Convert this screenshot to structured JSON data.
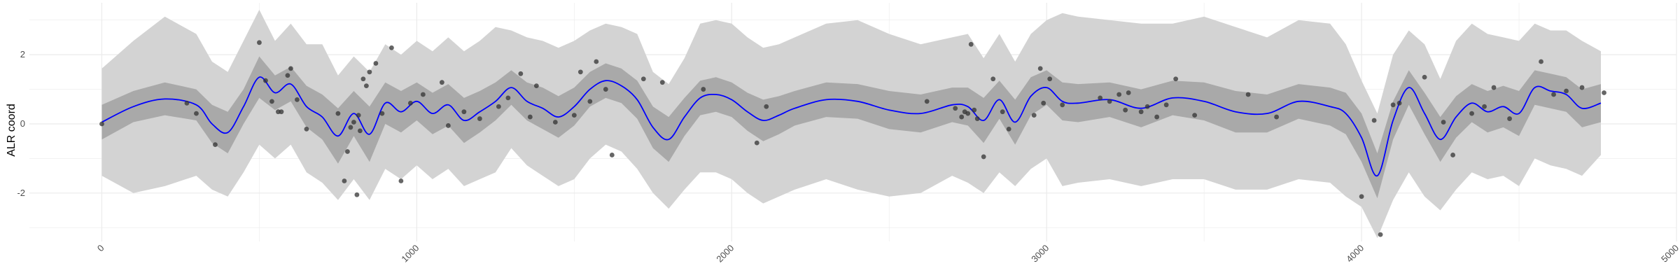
{
  "chart_data": {
    "type": "line",
    "title": "",
    "xlabel": "",
    "ylabel": "ALR coord",
    "xlim": [
      -230,
      5000
    ],
    "ylim": [
      -3.4,
      3.5
    ],
    "grid": true,
    "x_ticks": [
      0,
      1000,
      2000,
      3000,
      4000,
      5000
    ],
    "y_ticks": [
      -2,
      0,
      2
    ],
    "colors": {
      "mean_line": "#0000ff",
      "inner_band": "#a9a9a9",
      "outer_band": "#d3d3d3",
      "points": "#333333",
      "grid": "#ebebeb"
    },
    "series": [
      {
        "role": "mean",
        "x": [
          0,
          100,
          200,
          300,
          350,
          400,
          450,
          500,
          550,
          600,
          650,
          700,
          750,
          800,
          850,
          900,
          950,
          1000,
          1050,
          1100,
          1150,
          1200,
          1250,
          1300,
          1350,
          1400,
          1450,
          1500,
          1550,
          1600,
          1650,
          1700,
          1750,
          1800,
          1850,
          1900,
          1950,
          2000,
          2050,
          2100,
          2150,
          2200,
          2300,
          2400,
          2500,
          2600,
          2700,
          2750,
          2800,
          2850,
          2900,
          2950,
          3000,
          3050,
          3100,
          3200,
          3300,
          3400,
          3500,
          3600,
          3700,
          3800,
          3900,
          3950,
          4000,
          4050,
          4100,
          4150,
          4200,
          4250,
          4300,
          4350,
          4400,
          4450,
          4500,
          4550,
          4600,
          4650,
          4700,
          4760
        ],
        "y": [
          0.05,
          0.5,
          0.72,
          0.55,
          0.0,
          -0.25,
          0.5,
          1.35,
          0.9,
          1.15,
          0.5,
          0.2,
          -0.35,
          0.3,
          -0.3,
          0.6,
          0.35,
          0.65,
          0.3,
          0.55,
          0.1,
          0.35,
          0.65,
          1.05,
          0.65,
          0.45,
          0.2,
          0.5,
          1.0,
          1.25,
          1.1,
          0.7,
          -0.1,
          -0.45,
          0.2,
          0.75,
          0.85,
          0.7,
          0.35,
          0.1,
          0.25,
          0.45,
          0.7,
          0.65,
          0.4,
          0.3,
          0.55,
          0.5,
          0.1,
          0.7,
          0.05,
          0.8,
          1.05,
          0.65,
          0.6,
          0.7,
          0.45,
          0.75,
          0.65,
          0.35,
          0.3,
          0.65,
          0.5,
          0.3,
          -0.4,
          -1.5,
          0.1,
          1.05,
          0.3,
          -0.45,
          0.2,
          0.6,
          0.35,
          0.5,
          0.3,
          1.05,
          0.95,
          0.85,
          0.45,
          0.6
        ]
      },
      {
        "role": "inner_interval",
        "x": [
          0,
          100,
          200,
          300,
          350,
          400,
          450,
          500,
          550,
          600,
          650,
          700,
          750,
          800,
          850,
          900,
          950,
          1000,
          1050,
          1100,
          1150,
          1200,
          1250,
          1300,
          1350,
          1400,
          1450,
          1500,
          1550,
          1600,
          1650,
          1700,
          1750,
          1800,
          1850,
          1900,
          1950,
          2000,
          2050,
          2100,
          2150,
          2200,
          2300,
          2400,
          2500,
          2600,
          2700,
          2750,
          2800,
          2850,
          2900,
          2950,
          3000,
          3050,
          3100,
          3200,
          3300,
          3400,
          3500,
          3600,
          3700,
          3800,
          3900,
          3950,
          4000,
          4050,
          4100,
          4150,
          4200,
          4250,
          4300,
          4350,
          4400,
          4450,
          4500,
          4550,
          4600,
          4650,
          4700,
          4760
        ],
        "upper": [
          0.55,
          0.95,
          1.2,
          1.0,
          0.55,
          0.35,
          1.0,
          1.95,
          1.4,
          1.65,
          1.1,
          0.85,
          0.45,
          0.95,
          0.5,
          1.2,
          0.95,
          1.2,
          0.9,
          1.15,
          0.75,
          0.95,
          1.2,
          1.55,
          1.2,
          1.05,
          0.8,
          1.05,
          1.5,
          1.75,
          1.6,
          1.25,
          0.5,
          0.2,
          0.75,
          1.25,
          1.35,
          1.2,
          0.9,
          0.7,
          0.8,
          0.95,
          1.2,
          1.15,
          0.95,
          0.85,
          1.05,
          1.05,
          0.75,
          1.25,
          0.7,
          1.35,
          1.55,
          1.2,
          1.15,
          1.2,
          1.0,
          1.25,
          1.2,
          0.95,
          0.85,
          1.15,
          1.05,
          0.9,
          0.3,
          -0.85,
          0.65,
          1.55,
          0.9,
          0.2,
          0.8,
          1.15,
          0.95,
          1.1,
          0.95,
          1.55,
          1.45,
          1.35,
          1.0,
          1.15
        ],
        "lower": [
          -0.45,
          0.05,
          0.25,
          0.1,
          -0.55,
          -0.85,
          0.0,
          0.75,
          0.4,
          0.65,
          -0.1,
          -0.45,
          -1.15,
          -0.35,
          -1.1,
          0.0,
          -0.25,
          0.1,
          -0.3,
          -0.05,
          -0.55,
          -0.25,
          0.1,
          0.55,
          0.1,
          -0.15,
          -0.4,
          -0.05,
          0.5,
          0.75,
          0.6,
          0.15,
          -0.7,
          -1.1,
          -0.35,
          0.25,
          0.35,
          0.2,
          -0.2,
          -0.5,
          -0.3,
          -0.05,
          0.2,
          0.15,
          -0.15,
          -0.25,
          0.05,
          -0.05,
          -0.55,
          0.15,
          -0.6,
          0.25,
          0.55,
          0.1,
          0.05,
          0.2,
          -0.1,
          0.25,
          0.1,
          -0.25,
          -0.25,
          0.15,
          -0.05,
          -0.3,
          -1.1,
          -2.15,
          -0.45,
          0.55,
          -0.3,
          -1.1,
          -0.4,
          0.05,
          -0.25,
          -0.1,
          -0.35,
          0.55,
          0.45,
          0.35,
          -0.1,
          0.05
        ]
      },
      {
        "role": "outer_interval",
        "x": [
          0,
          100,
          200,
          300,
          350,
          400,
          450,
          500,
          550,
          600,
          650,
          700,
          750,
          800,
          850,
          900,
          950,
          1000,
          1050,
          1100,
          1150,
          1200,
          1250,
          1300,
          1350,
          1400,
          1450,
          1500,
          1550,
          1600,
          1650,
          1700,
          1750,
          1800,
          1850,
          1900,
          1950,
          2000,
          2050,
          2100,
          2150,
          2200,
          2300,
          2400,
          2500,
          2600,
          2700,
          2750,
          2800,
          2850,
          2900,
          2950,
          3000,
          3050,
          3100,
          3200,
          3300,
          3400,
          3500,
          3600,
          3700,
          3800,
          3900,
          3950,
          4000,
          4050,
          4100,
          4150,
          4200,
          4250,
          4300,
          4350,
          4400,
          4450,
          4500,
          4550,
          4600,
          4650,
          4700,
          4760
        ],
        "upper": [
          1.6,
          2.4,
          3.1,
          2.6,
          1.8,
          1.5,
          2.4,
          3.3,
          2.4,
          2.9,
          2.3,
          2.3,
          1.4,
          1.95,
          1.5,
          2.3,
          2.0,
          2.4,
          2.1,
          2.5,
          2.1,
          2.4,
          2.8,
          2.7,
          2.5,
          2.4,
          2.2,
          2.4,
          2.7,
          2.9,
          2.8,
          2.6,
          1.5,
          1.15,
          1.9,
          2.9,
          3.0,
          2.9,
          2.5,
          2.2,
          2.3,
          2.5,
          2.9,
          3.0,
          2.6,
          2.3,
          2.5,
          2.6,
          1.9,
          2.6,
          1.8,
          2.6,
          3.0,
          3.2,
          3.1,
          3.0,
          2.9,
          2.9,
          3.1,
          2.8,
          2.5,
          3.0,
          2.9,
          2.3,
          1.25,
          0.3,
          2.0,
          2.7,
          2.3,
          1.3,
          2.4,
          2.9,
          2.6,
          2.5,
          2.4,
          2.9,
          2.7,
          2.7,
          2.4,
          2.1
        ],
        "lower": [
          -1.5,
          -2.0,
          -1.8,
          -1.5,
          -1.9,
          -2.1,
          -1.4,
          -0.6,
          -1.0,
          -0.6,
          -1.4,
          -1.7,
          -2.2,
          -1.6,
          -2.2,
          -1.3,
          -1.6,
          -1.2,
          -1.6,
          -1.3,
          -1.8,
          -1.6,
          -1.4,
          -0.7,
          -1.2,
          -1.5,
          -1.8,
          -1.6,
          -1.0,
          -0.6,
          -0.8,
          -1.3,
          -2.0,
          -2.45,
          -1.9,
          -1.4,
          -1.4,
          -1.6,
          -2.0,
          -2.3,
          -2.1,
          -1.9,
          -1.6,
          -1.9,
          -2.1,
          -2.0,
          -1.5,
          -1.7,
          -2.0,
          -1.4,
          -1.8,
          -1.3,
          -1.0,
          -1.8,
          -1.7,
          -1.6,
          -1.8,
          -1.6,
          -1.6,
          -1.9,
          -1.9,
          -1.6,
          -1.7,
          -2.1,
          -2.4,
          -3.3,
          -2.2,
          -1.4,
          -2.1,
          -2.5,
          -1.9,
          -1.4,
          -1.6,
          -1.5,
          -1.8,
          -1.0,
          -1.2,
          -1.3,
          -1.5,
          -0.9
        ]
      },
      {
        "role": "observations",
        "x": [
          0,
          270,
          300,
          360,
          500,
          520,
          540,
          560,
          570,
          590,
          600,
          620,
          650,
          750,
          770,
          780,
          790,
          800,
          810,
          815,
          820,
          830,
          840,
          850,
          870,
          890,
          920,
          950,
          980,
          1020,
          1080,
          1100,
          1150,
          1200,
          1260,
          1290,
          1330,
          1360,
          1380,
          1440,
          1500,
          1520,
          1550,
          1570,
          1600,
          1620,
          1720,
          1780,
          1910,
          2080,
          2110,
          2620,
          2710,
          2730,
          2740,
          2750,
          2760,
          2770,
          2780,
          2800,
          2830,
          2860,
          2880,
          2960,
          2980,
          2990,
          3010,
          3050,
          3170,
          3200,
          3230,
          3250,
          3260,
          3300,
          3320,
          3350,
          3380,
          3410,
          3470,
          3640,
          3730,
          4000,
          4040,
          4060,
          4100,
          4120,
          4200,
          4260,
          4290,
          4350,
          4390,
          4420,
          4470,
          4570,
          4610,
          4650,
          4700,
          4770
        ],
        "y": [
          0.0,
          0.6,
          0.3,
          -0.6,
          2.35,
          1.25,
          0.65,
          0.35,
          0.35,
          1.4,
          1.6,
          0.7,
          -0.15,
          0.3,
          -1.65,
          -0.8,
          -0.1,
          0.05,
          -2.05,
          0.25,
          -0.2,
          1.3,
          1.1,
          1.5,
          1.75,
          0.3,
          2.2,
          -1.65,
          0.6,
          0.85,
          1.2,
          -0.05,
          0.35,
          0.15,
          0.5,
          0.75,
          1.45,
          0.2,
          1.1,
          0.05,
          0.25,
          1.5,
          0.65,
          1.8,
          1.0,
          -0.9,
          1.3,
          1.2,
          1.0,
          -0.55,
          0.5,
          0.65,
          0.45,
          0.2,
          0.35,
          0.3,
          2.3,
          0.4,
          0.15,
          -0.95,
          1.3,
          0.35,
          -0.15,
          0.25,
          1.6,
          0.6,
          1.3,
          0.55,
          0.75,
          0.65,
          0.85,
          0.4,
          0.9,
          0.35,
          0.5,
          0.2,
          0.55,
          1.3,
          0.25,
          0.85,
          0.2,
          -2.1,
          0.1,
          -3.2,
          0.55,
          0.6,
          1.35,
          0.05,
          -0.9,
          0.3,
          0.5,
          1.05,
          0.15,
          1.8,
          0.85,
          0.95,
          1.05,
          0.9
        ]
      }
    ]
  }
}
